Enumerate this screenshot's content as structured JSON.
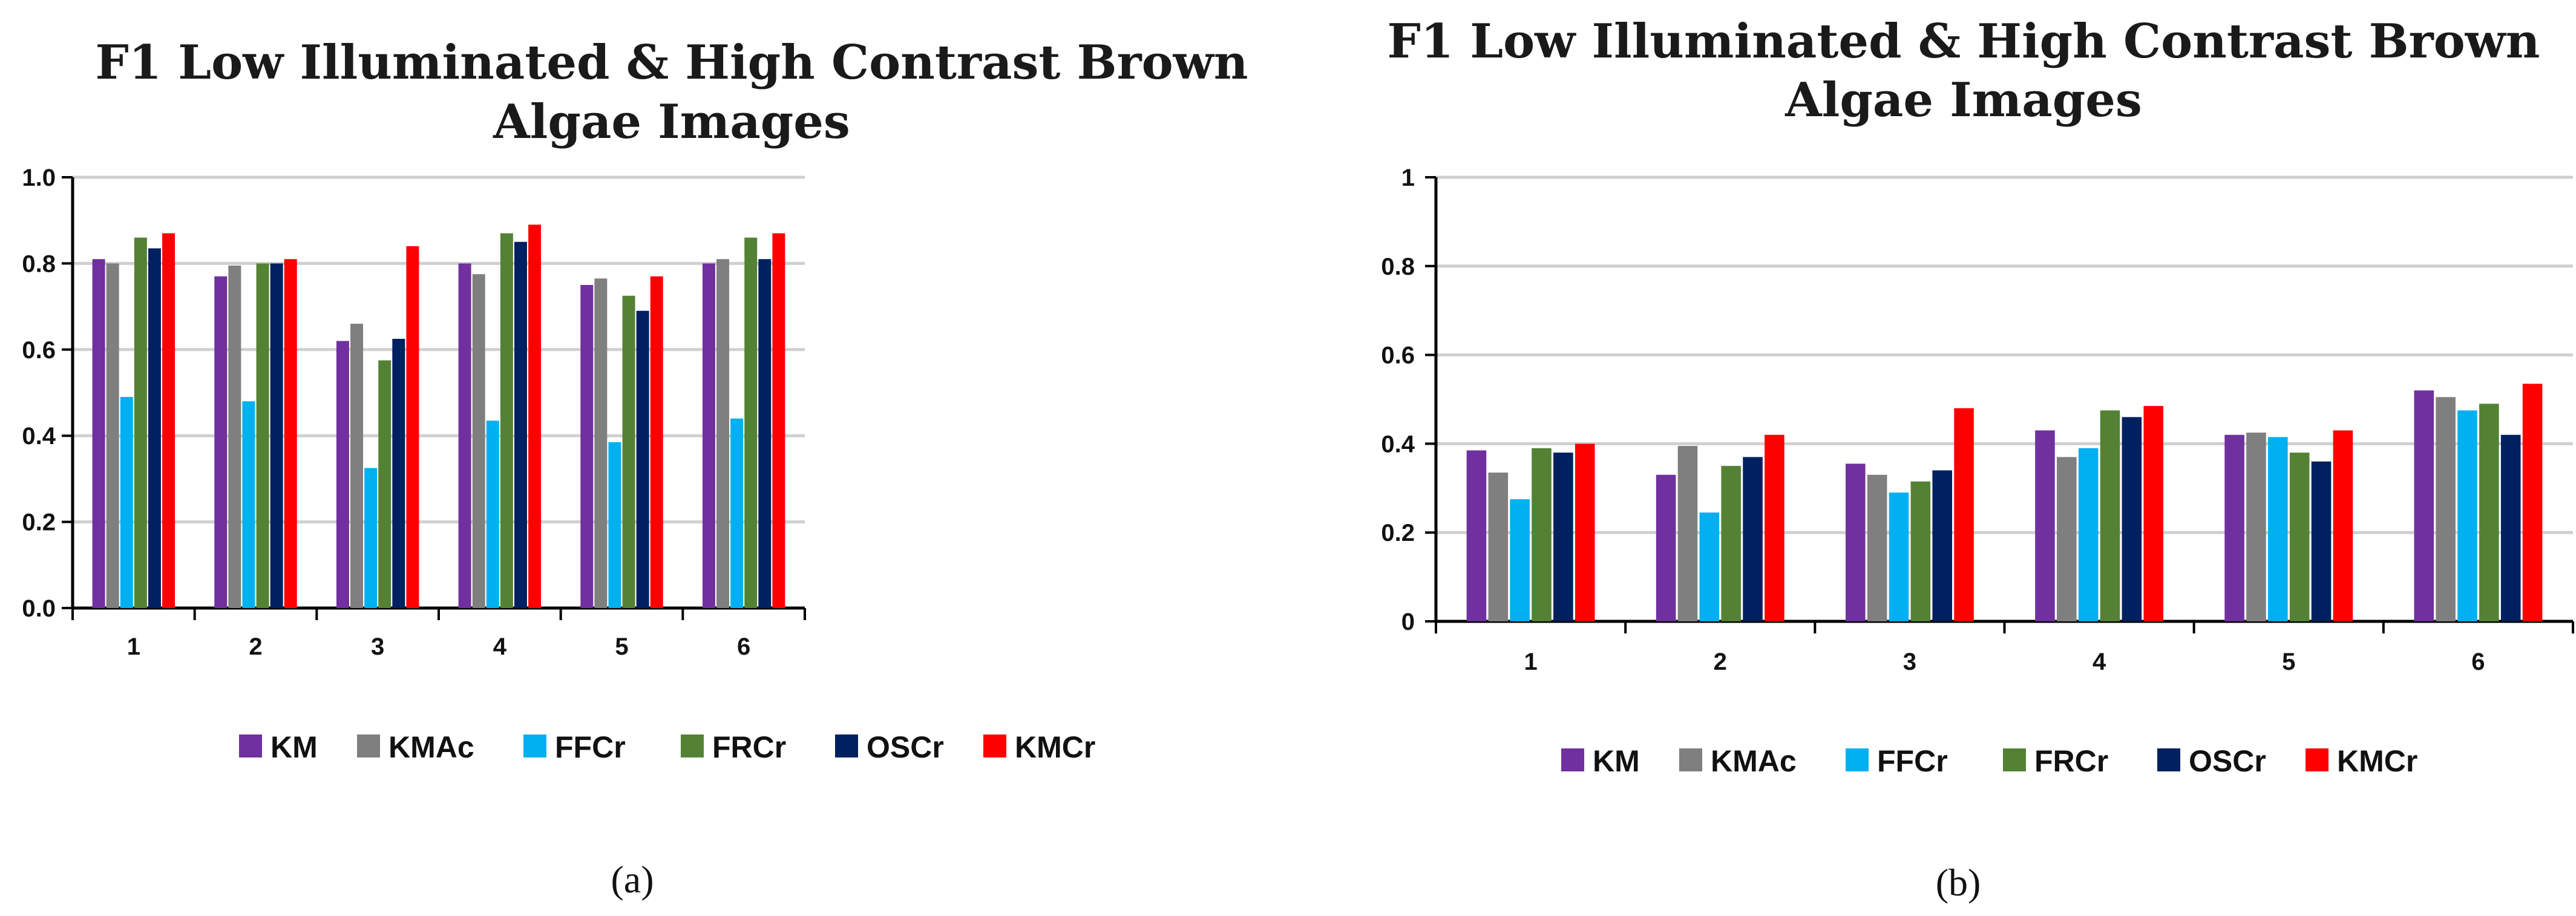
{
  "chart_data": [
    {
      "type": "bar",
      "panel_label": "(a)",
      "title": "F1 Low Illuminated & High Contrast Brown Algae Images",
      "title_lines": [
        "F1 Low Illuminated & High Contrast Brown",
        "Algae Images"
      ],
      "categories": [
        "1",
        "2",
        "3",
        "4",
        "5",
        "6"
      ],
      "ylim": [
        0,
        1.0
      ],
      "yticks": [
        0,
        0.2,
        0.4,
        0.6,
        0.8,
        1.0
      ],
      "ytick_labels": [
        "0.0",
        "0.2",
        "0.4",
        "0.6",
        "0.8",
        "1.0"
      ],
      "grid": true,
      "legend_position": "bottom",
      "series": [
        {
          "name": "KM",
          "values": [
            0.81,
            0.77,
            0.62,
            0.8,
            0.75,
            0.8
          ]
        },
        {
          "name": "KMAc",
          "values": [
            0.8,
            0.795,
            0.66,
            0.775,
            0.765,
            0.81
          ]
        },
        {
          "name": "FFCr",
          "values": [
            0.49,
            0.48,
            0.325,
            0.435,
            0.385,
            0.44
          ]
        },
        {
          "name": "FRCr",
          "values": [
            0.86,
            0.8,
            0.575,
            0.87,
            0.725,
            0.86
          ]
        },
        {
          "name": "OSCr",
          "values": [
            0.835,
            0.8,
            0.625,
            0.85,
            0.69,
            0.81
          ]
        },
        {
          "name": "KMCr",
          "values": [
            0.87,
            0.81,
            0.84,
            0.89,
            0.77,
            0.87
          ]
        }
      ]
    },
    {
      "type": "bar",
      "panel_label": "(b)",
      "title": "F1 Low Illuminated & High Contrast Brown Algae Images",
      "title_lines": [
        "F1 Low Illuminated & High Contrast Brown",
        "Algae Images"
      ],
      "categories": [
        "1",
        "2",
        "3",
        "4",
        "5",
        "6"
      ],
      "ylim": [
        0,
        1
      ],
      "yticks": [
        0,
        0.2,
        0.4,
        0.6,
        0.8,
        1
      ],
      "ytick_labels": [
        "0",
        "0.2",
        "0.4",
        "0.6",
        "0.8",
        "1"
      ],
      "grid": true,
      "legend_position": "bottom",
      "series": [
        {
          "name": "KM",
          "values": [
            0.385,
            0.33,
            0.355,
            0.43,
            0.42,
            0.52
          ]
        },
        {
          "name": "KMAc",
          "values": [
            0.335,
            0.395,
            0.33,
            0.37,
            0.425,
            0.505
          ]
        },
        {
          "name": "FFCr",
          "values": [
            0.275,
            0.245,
            0.29,
            0.39,
            0.415,
            0.475
          ]
        },
        {
          "name": "FRCr",
          "values": [
            0.39,
            0.35,
            0.315,
            0.475,
            0.38,
            0.49
          ]
        },
        {
          "name": "OSCr",
          "values": [
            0.38,
            0.37,
            0.34,
            0.46,
            0.36,
            0.42
          ]
        },
        {
          "name": "KMCr",
          "values": [
            0.4,
            0.42,
            0.48,
            0.485,
            0.43,
            0.535
          ]
        }
      ]
    }
  ],
  "series_colors": {
    "KM": "#7030a0",
    "KMAc": "#7f7f7f",
    "FFCr": "#00b0f0",
    "FRCr": "#548235",
    "OSCr": "#002060",
    "KMCr": "#ff0000"
  }
}
